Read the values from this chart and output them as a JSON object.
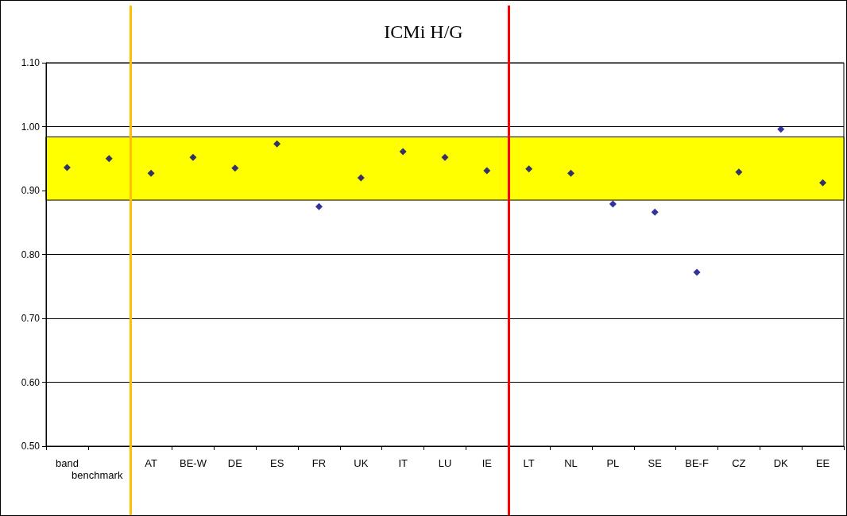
{
  "chart_data": {
    "type": "scatter",
    "title": "ICMi H/G",
    "categories": [
      "band",
      "benchmark",
      "AT",
      "BE-W",
      "DE",
      "ES",
      "FR",
      "UK",
      "IT",
      "LU",
      "IE",
      "LT",
      "NL",
      "PL",
      "SE",
      "BE-F",
      "CZ",
      "DK",
      "EE"
    ],
    "series": [
      {
        "color": "#000080",
        "values": [
          0.936,
          0.95,
          0.927,
          0.952,
          0.935,
          0.973,
          0.875,
          0.92,
          0.961,
          0.952,
          0.931,
          0.934,
          0.927,
          0.879,
          0.866,
          0.772,
          0.929,
          0.996,
          0.912
        ]
      }
    ],
    "ylim": [
      0.5,
      1.1
    ],
    "yticks": [
      {
        "value": 0.5,
        "label": "0.50"
      },
      {
        "value": 0.6,
        "label": "0.60"
      },
      {
        "value": 0.7,
        "label": "0.70"
      },
      {
        "value": 0.8,
        "label": "0.80"
      },
      {
        "value": 0.9,
        "label": "0.90"
      },
      {
        "value": 1.0,
        "label": "1.00"
      },
      {
        "value": 1.1,
        "label": "1.10"
      }
    ],
    "grid": "y",
    "marker": "diamond",
    "bands": [
      {
        "axis": "y",
        "from": 0.885,
        "to": 0.984,
        "color": "#ffff00"
      }
    ],
    "ref_lines": [
      {
        "axis": "x",
        "value": "AT",
        "color": "#ffc000"
      },
      {
        "axis": "x",
        "value": "LT",
        "color": "#ff0000"
      }
    ]
  }
}
